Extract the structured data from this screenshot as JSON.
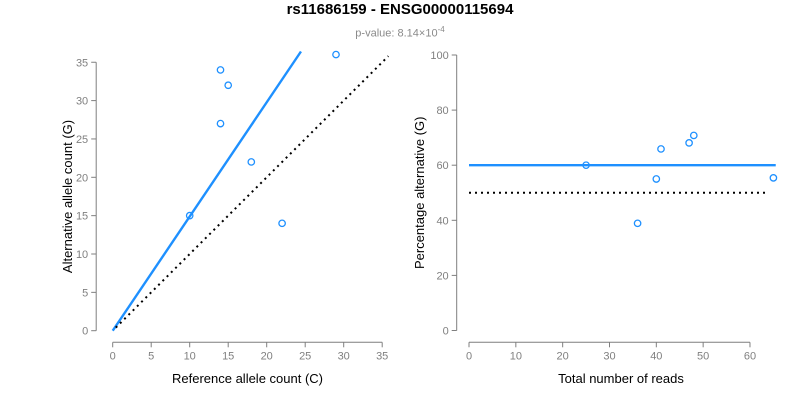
{
  "header": {
    "title": "rs11686159 - ENSG00000115694",
    "subtitle_prefix": "p-value: ",
    "subtitle_value": "8.14×10",
    "subtitle_exponent": "-4"
  },
  "colors": {
    "accent_blue": "#1E90FF",
    "identity_black": "#000000",
    "axis_gray": "#7f7f7f",
    "tick_label_gray": "#808080",
    "axis_title_black": "#000000",
    "subtitle_gray": "#8a8a8a"
  },
  "chart_data": [
    {
      "type": "scatter",
      "name": "allele-counts-plot",
      "xlabel": "Reference allele count (C)",
      "ylabel": "Alternative allele count (G)",
      "xlim": [
        -1.4,
        36.4
      ],
      "ylim": [
        -1.5,
        37.4
      ],
      "xticks": [
        0,
        5,
        10,
        15,
        20,
        25,
        30,
        35
      ],
      "yticks": [
        0,
        5,
        10,
        15,
        20,
        25,
        30,
        35
      ],
      "grid": false,
      "legend": null,
      "points": [
        [
          10,
          15
        ],
        [
          14,
          27
        ],
        [
          14,
          34
        ],
        [
          15,
          32
        ],
        [
          18,
          22
        ],
        [
          22,
          14
        ],
        [
          29,
          36
        ]
      ],
      "lines": [
        {
          "name": "fit-line",
          "style": "solid",
          "color": "#1E90FF",
          "x1": 0,
          "y1": 0,
          "x2": 24.45,
          "y2": 36.4
        },
        {
          "name": "identity-line",
          "style": "dotted",
          "color": "#000000",
          "x1": 0.4,
          "y1": 0.4,
          "x2": 35.8,
          "y2": 35.8
        }
      ]
    },
    {
      "type": "scatter",
      "name": "percentage-alternative-plot",
      "xlabel": "Total number of reads",
      "ylabel": "Percentage alternative (G)",
      "xlim": [
        -2.6,
        67.6
      ],
      "ylim": [
        -4,
        104
      ],
      "xticks": [
        0,
        10,
        20,
        30,
        40,
        50,
        60
      ],
      "yticks": [
        0,
        20,
        40,
        60,
        80,
        100
      ],
      "grid": false,
      "legend": null,
      "points": [
        [
          25,
          60
        ],
        [
          36,
          38.9
        ],
        [
          40,
          55
        ],
        [
          41,
          65.9
        ],
        [
          47,
          68.1
        ],
        [
          48,
          70.8
        ],
        [
          65,
          55.4
        ]
      ],
      "lines": [
        {
          "name": "fit-line",
          "style": "solid",
          "color": "#1E90FF",
          "x1": 0,
          "y1": 60,
          "x2": 65.5,
          "y2": 60
        },
        {
          "name": "identity-line",
          "style": "dotted",
          "color": "#000000",
          "x1": 0,
          "y1": 50,
          "x2": 63.8,
          "y2": 50
        }
      ]
    }
  ]
}
